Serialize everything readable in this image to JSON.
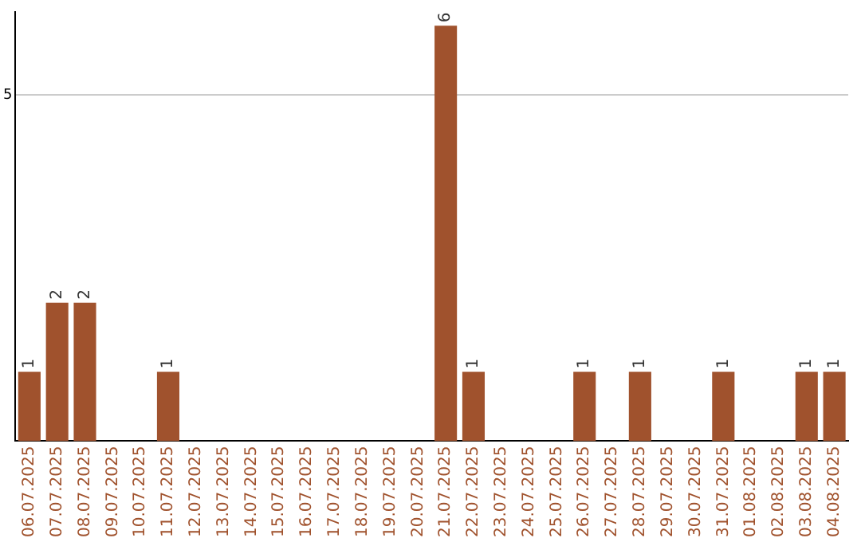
{
  "chart_data": {
    "type": "bar",
    "categories": [
      "06.07.2025",
      "07.07.2025",
      "08.07.2025",
      "09.07.2025",
      "10.07.2025",
      "11.07.2025",
      "12.07.2025",
      "13.07.2025",
      "14.07.2025",
      "15.07.2025",
      "16.07.2025",
      "17.07.2025",
      "18.07.2025",
      "19.07.2025",
      "20.07.2025",
      "21.07.2025",
      "22.07.2025",
      "23.07.2025",
      "24.07.2025",
      "25.07.2025",
      "26.07.2025",
      "27.07.2025",
      "28.07.2025",
      "29.07.2025",
      "30.07.2025",
      "31.07.2025",
      "01.08.2025",
      "02.08.2025",
      "03.08.2025",
      "04.08.2025"
    ],
    "values": [
      1,
      2,
      2,
      0,
      0,
      1,
      0,
      0,
      0,
      0,
      0,
      0,
      0,
      0,
      0,
      6,
      1,
      0,
      0,
      0,
      1,
      0,
      1,
      0,
      0,
      1,
      0,
      0,
      1,
      1
    ],
    "value_labels": [
      "1",
      "2",
      "2",
      null,
      null,
      "1",
      null,
      null,
      null,
      null,
      null,
      null,
      null,
      null,
      null,
      "6",
      "1",
      null,
      null,
      null,
      "1",
      null,
      "1",
      null,
      null,
      "1",
      null,
      null,
      "1",
      "1"
    ],
    "color": "#a0522d",
    "ylim": [
      0,
      6.2
    ],
    "yticks": [
      5
    ],
    "grid": "y",
    "legend": false
  }
}
